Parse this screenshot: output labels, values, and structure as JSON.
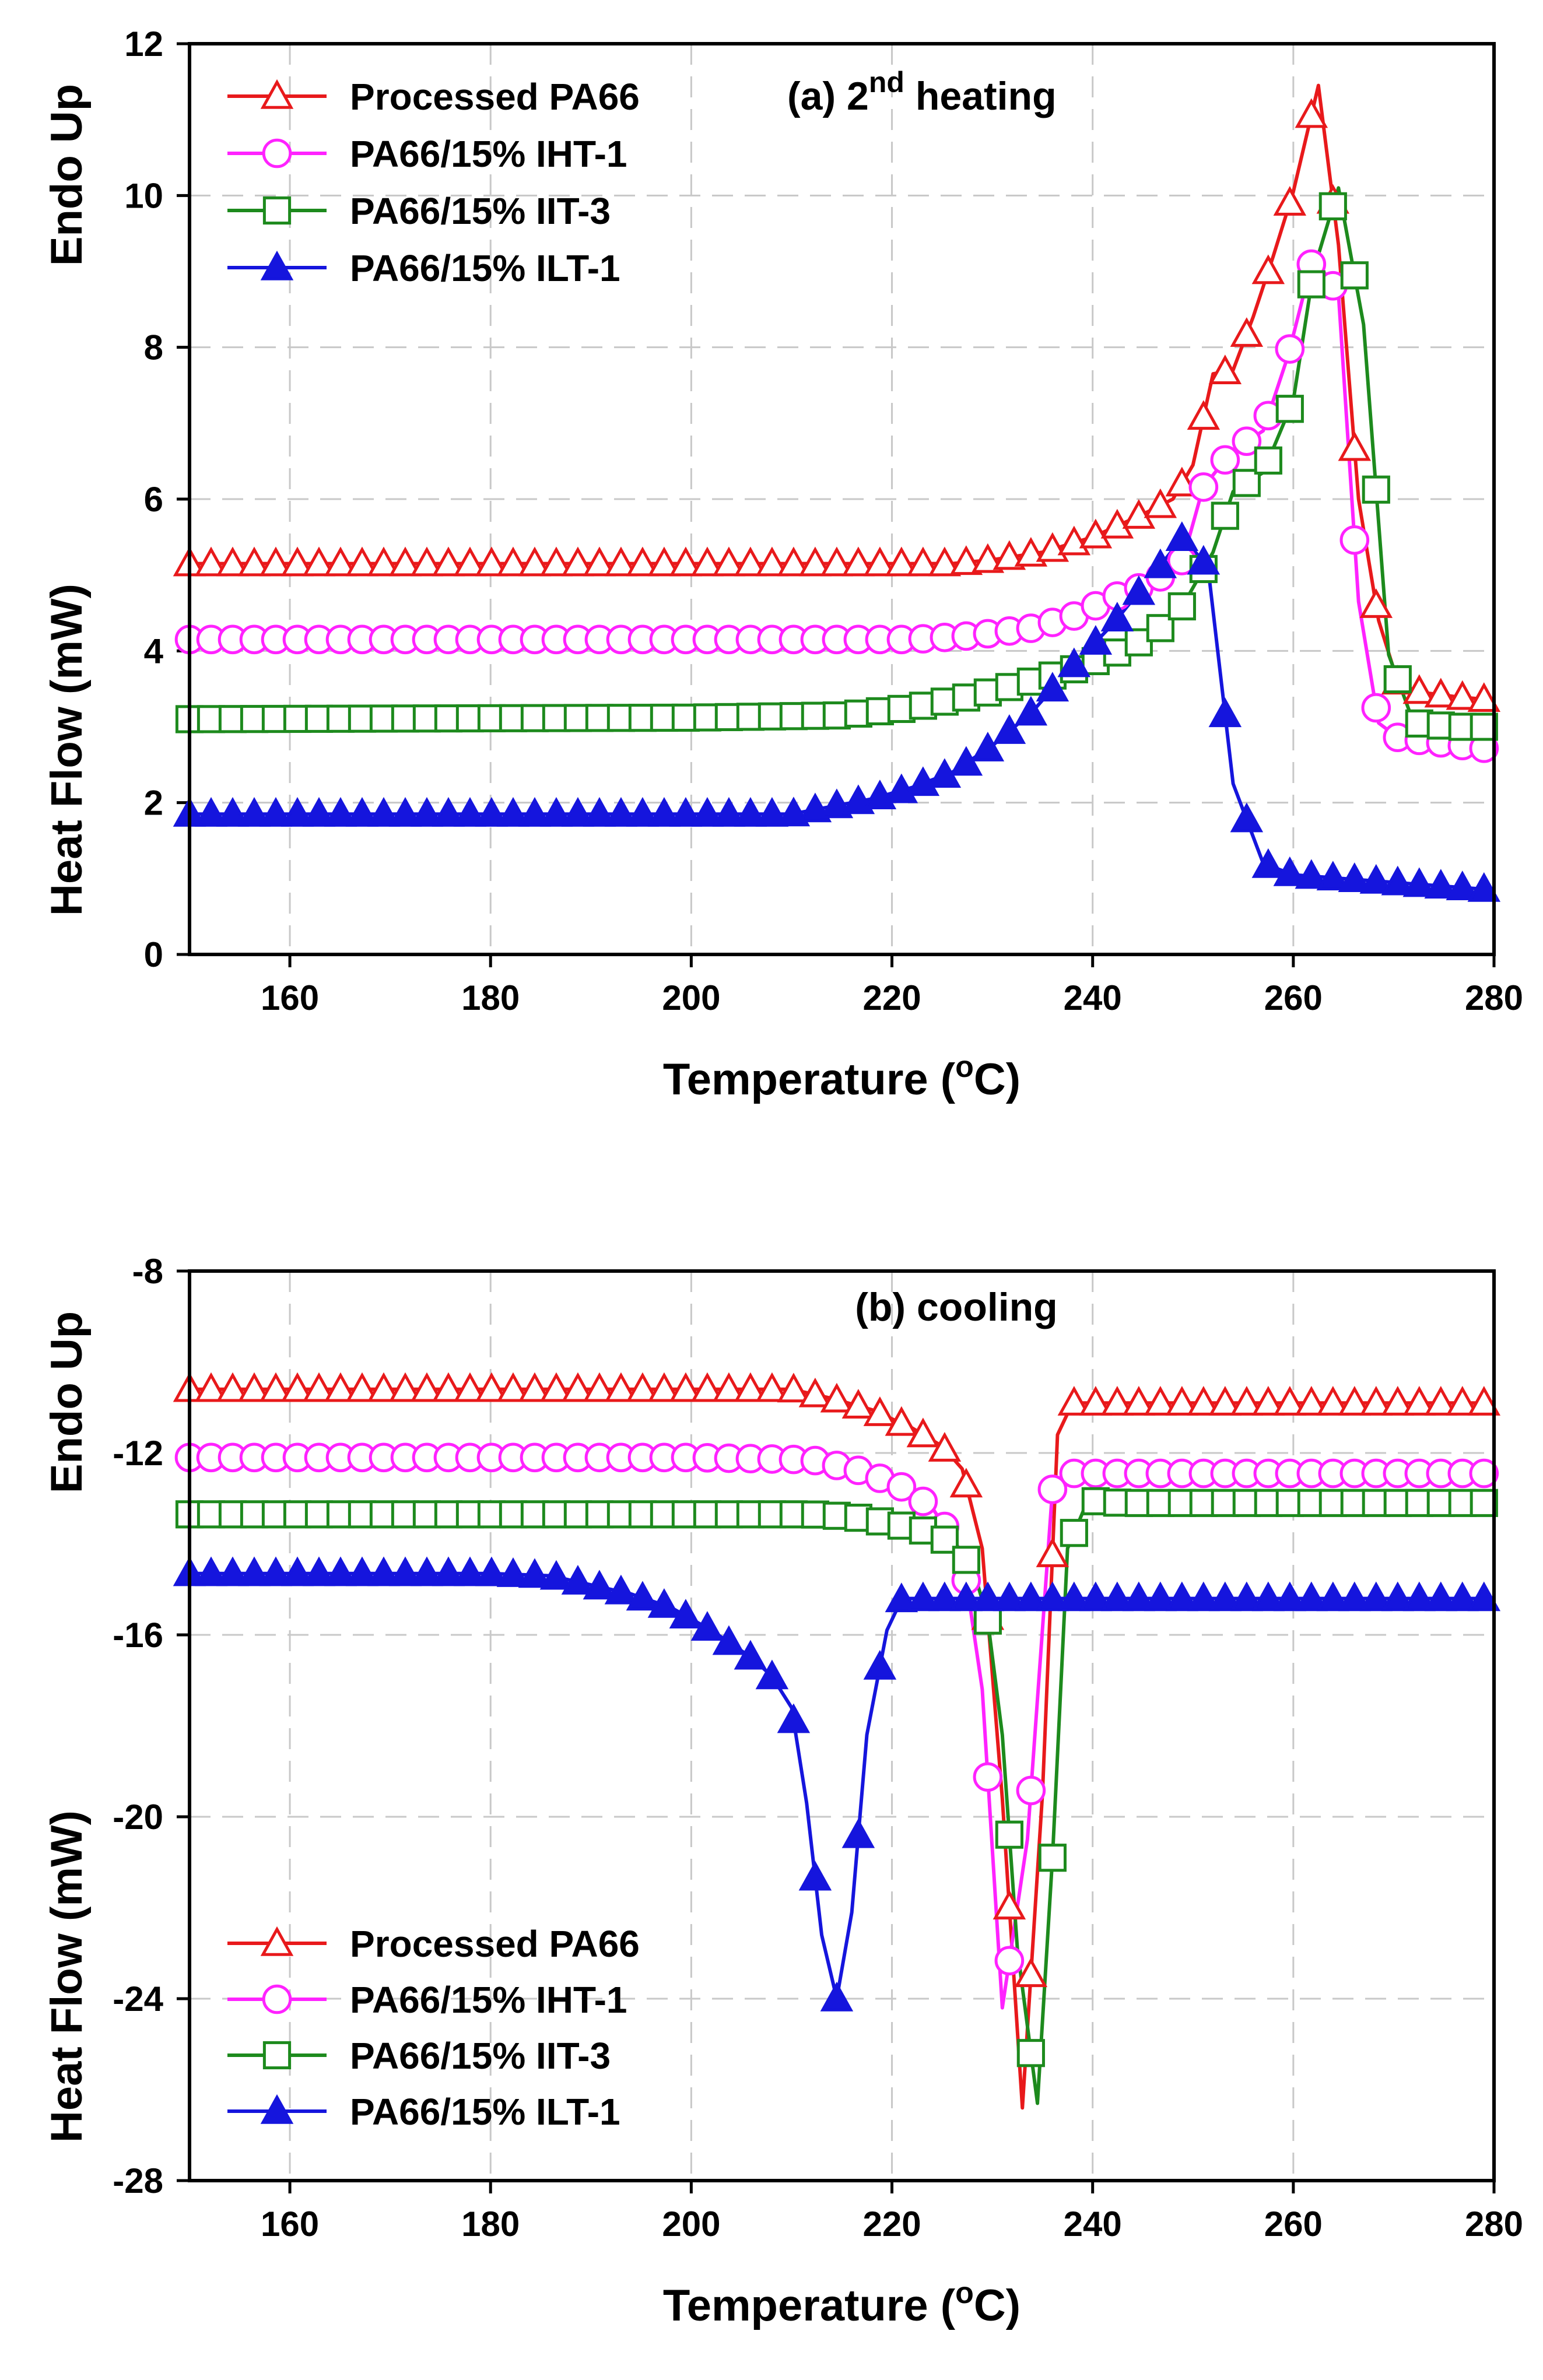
{
  "chart_data": [
    {
      "type": "line",
      "title": "(a) 2nd heating",
      "title_parts": {
        "prefix": "(a) 2",
        "superscript": "nd",
        "suffix": "heating"
      },
      "xlabel": "Temperature (oC)",
      "xlabel_parts": {
        "prefix": "Temperature (",
        "superscript": "o",
        "suffix": "C)"
      },
      "ylabel": "Heat Flow (mW)",
      "ylabel_extra": "Endo Up",
      "xlim": [
        150,
        280
      ],
      "ylim": [
        0,
        12
      ],
      "xticks": [
        160,
        180,
        200,
        220,
        240,
        260,
        280
      ],
      "yticks": [
        0,
        2,
        4,
        6,
        8,
        10,
        12
      ],
      "grid": true,
      "legend": "top-left",
      "series": [
        {
          "name": "Processed PA66",
          "color": "#e8191b",
          "marker": "triangle-open",
          "x": [
            150,
            200,
            226,
            230,
            235,
            240,
            245,
            248,
            250,
            252,
            254,
            256,
            258,
            260,
            262.5,
            264.5,
            266.5,
            268.5,
            270.5,
            273,
            276,
            280
          ],
          "y": [
            5.15,
            5.15,
            5.15,
            5.2,
            5.3,
            5.5,
            5.8,
            6.0,
            6.45,
            7.65,
            7.7,
            8.4,
            9.2,
            10.05,
            11.45,
            9.35,
            6.0,
            4.4,
            3.55,
            3.45,
            3.4,
            3.35
          ]
        },
        {
          "name": "PA66/15% IHT-1",
          "color": "#ff22ff",
          "marker": "circle-open",
          "x": [
            150,
            200,
            222,
            228,
            234,
            238,
            242,
            246,
            249,
            251,
            254,
            257,
            259.5,
            262,
            264.5,
            266.5,
            268.5,
            270.5,
            274,
            280
          ],
          "y": [
            4.15,
            4.15,
            4.15,
            4.2,
            4.3,
            4.45,
            4.7,
            4.9,
            5.2,
            6.15,
            6.65,
            6.9,
            7.9,
            9.2,
            8.7,
            4.65,
            3.05,
            2.85,
            2.8,
            2.7
          ]
        },
        {
          "name": "PA66/15% IIT-3",
          "color": "#1d8a1d",
          "marker": "square-open",
          "x": [
            150,
            200,
            215,
            222,
            228,
            234,
            238,
            242,
            246,
            249,
            252,
            254,
            257,
            260,
            262,
            264.5,
            267,
            269.5,
            272,
            276,
            280
          ],
          "y": [
            3.1,
            3.12,
            3.15,
            3.25,
            3.4,
            3.6,
            3.75,
            3.95,
            4.2,
            4.6,
            5.3,
            6.1,
            6.35,
            7.3,
            9.0,
            10.1,
            8.3,
            3.95,
            3.05,
            3.0,
            3.0
          ]
        },
        {
          "name": "PA66/15% ILT-1",
          "color": "#1515dd",
          "marker": "triangle-filled",
          "x": [
            150,
            200,
            210,
            214,
            218,
            222,
            226,
            230,
            234,
            238,
            242,
            246,
            249,
            251.5,
            254,
            257,
            260,
            265,
            270,
            275,
            280
          ],
          "y": [
            1.85,
            1.85,
            1.85,
            1.95,
            2.05,
            2.2,
            2.4,
            2.75,
            3.2,
            3.8,
            4.35,
            5.0,
            5.5,
            5.1,
            2.25,
            1.2,
            1.05,
            1.0,
            0.95,
            0.9,
            0.85
          ]
        }
      ]
    },
    {
      "type": "line",
      "title": "(b) cooling",
      "xlabel": "Temperature (oC)",
      "xlabel_parts": {
        "prefix": "Temperature (",
        "superscript": "o",
        "suffix": "C)"
      },
      "ylabel": "Heat Flow (mW)",
      "ylabel_extra": "Endo Up",
      "xlim": [
        150,
        280
      ],
      "ylim": [
        -28,
        -8
      ],
      "xticks": [
        160,
        180,
        200,
        220,
        240,
        260,
        280
      ],
      "yticks": [
        -28,
        -24,
        -20,
        -16,
        -12,
        -8
      ],
      "grid": true,
      "legend": "bottom-left",
      "series": [
        {
          "name": "Processed PA66",
          "color": "#e8191b",
          "marker": "triangle-open",
          "x": [
            150,
            200,
            210,
            214,
            218,
            222,
            225,
            227,
            229,
            231,
            233,
            235,
            236.5,
            238,
            240,
            260,
            280
          ],
          "y": [
            -10.6,
            -10.6,
            -10.6,
            -10.8,
            -11.05,
            -11.45,
            -11.85,
            -12.35,
            -14.1,
            -19.6,
            -26.4,
            -19.5,
            -11.6,
            -10.9,
            -10.9,
            -10.9,
            -10.9
          ]
        },
        {
          "name": "PA66/15% IHT-1",
          "color": "#ff22ff",
          "marker": "circle-open",
          "x": [
            150,
            200,
            212,
            217,
            221,
            224,
            227,
            229,
            231,
            233.5,
            236,
            238,
            242,
            260,
            280
          ],
          "y": [
            -12.1,
            -12.1,
            -12.15,
            -12.4,
            -12.75,
            -13.2,
            -14.2,
            -17.2,
            -24.2,
            -20.5,
            -12.8,
            -12.45,
            -12.45,
            -12.45,
            -12.45
          ]
        },
        {
          "name": "PA66/15% IIT-3",
          "color": "#1d8a1d",
          "marker": "square-open",
          "x": [
            150,
            200,
            212,
            216,
            220,
            224,
            226,
            228,
            229.5,
            231,
            232.5,
            234.5,
            236,
            237.5,
            239.5,
            243,
            260,
            280
          ],
          "y": [
            -13.35,
            -13.35,
            -13.35,
            -13.4,
            -13.55,
            -13.75,
            -14.0,
            -14.5,
            -15.6,
            -18.2,
            -22.9,
            -26.3,
            -20.9,
            -14.1,
            -13.05,
            -13.1,
            -13.1,
            -13.1
          ]
        },
        {
          "name": "PA66/15% ILT-1",
          "color": "#1515dd",
          "marker": "triangle-filled",
          "x": [
            150,
            180,
            186,
            190,
            194,
            198,
            202,
            206,
            208,
            210,
            211.5,
            213,
            214.5,
            216,
            217.5,
            219.5,
            221,
            230,
            260,
            280
          ],
          "y": [
            -14.65,
            -14.65,
            -14.7,
            -14.9,
            -15.1,
            -15.4,
            -15.9,
            -16.5,
            -16.9,
            -17.6,
            -19.7,
            -22.6,
            -24.0,
            -22.1,
            -18.2,
            -15.9,
            -15.2,
            -15.2,
            -15.2,
            -15.2
          ]
        }
      ]
    }
  ]
}
